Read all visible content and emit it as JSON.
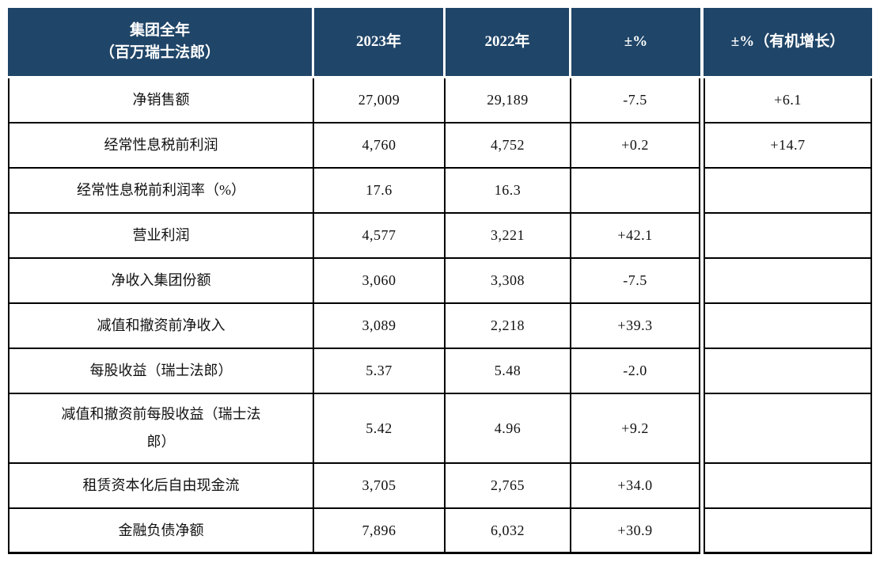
{
  "table": {
    "header": {
      "col1_line1": "集团全年",
      "col1_line2": "（百万瑞士法郎）",
      "col2": "2023年",
      "col3": "2022年",
      "col4": "±%",
      "col5": "±%（有机增长）"
    },
    "rows": [
      {
        "label": "净销售额",
        "y2023": "27,009",
        "y2022": "29,189",
        "change": "-7.5",
        "organic": "+6.1"
      },
      {
        "label": "经常性息税前利润",
        "y2023": "4,760",
        "y2022": "4,752",
        "change": "+0.2",
        "organic": "+14.7"
      },
      {
        "label": "经常性息税前利润率（%）",
        "y2023": "17.6",
        "y2022": "16.3",
        "change": "",
        "organic": ""
      },
      {
        "label": "营业利润",
        "y2023": "4,577",
        "y2022": "3,221",
        "change": "+42.1",
        "organic": ""
      },
      {
        "label": "净收入集团份额",
        "y2023": "3,060",
        "y2022": "3,308",
        "change": "-7.5",
        "organic": ""
      },
      {
        "label": "减值和撤资前净收入",
        "y2023": "3,089",
        "y2022": "2,218",
        "change": "+39.3",
        "organic": ""
      },
      {
        "label": "每股收益（瑞士法郎）",
        "y2023": "5.37",
        "y2022": "5.48",
        "change": "-2.0",
        "organic": ""
      },
      {
        "label": "减值和撤资前每股收益（瑞士法郎）",
        "y2023": "5.42",
        "y2022": "4.96",
        "change": "+9.2",
        "organic": ""
      },
      {
        "label": "租赁资本化后自由现金流",
        "y2023": "3,705",
        "y2022": "2,765",
        "change": "+34.0",
        "organic": ""
      },
      {
        "label": "金融负债净额",
        "y2023": "7,896",
        "y2022": "6,032",
        "change": "+30.9",
        "organic": ""
      }
    ],
    "colors": {
      "header_bg": "#1f4568",
      "header_text": "#ffffff",
      "border": "#000000"
    }
  }
}
